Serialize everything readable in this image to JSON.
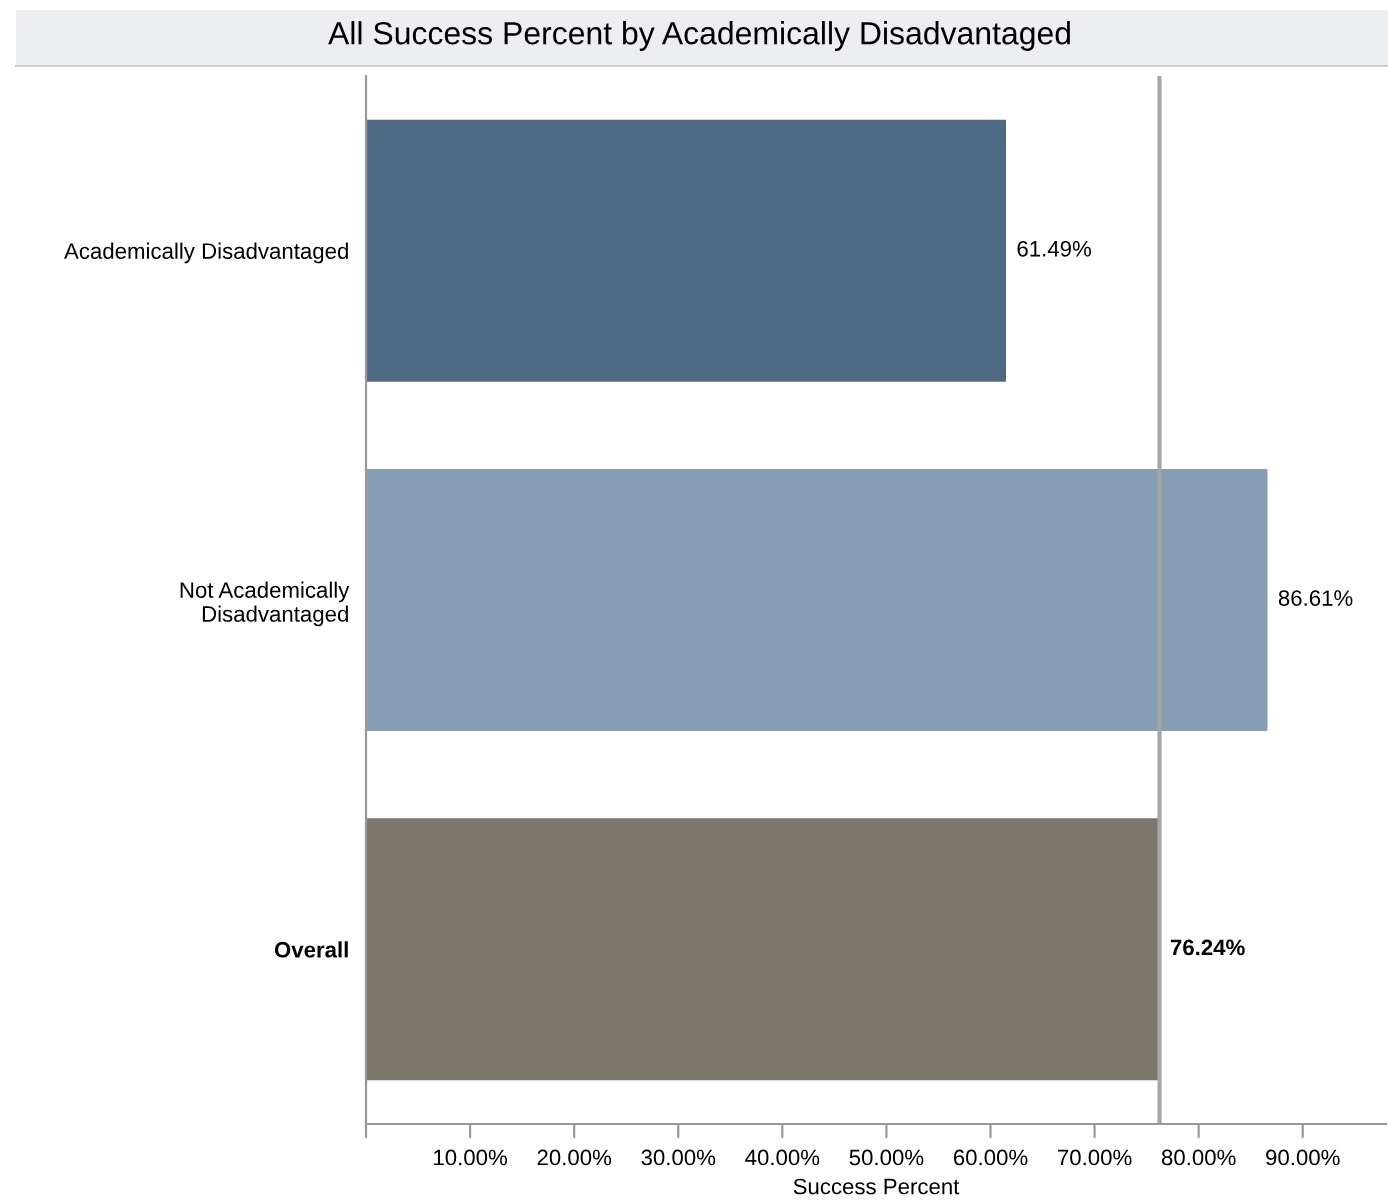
{
  "chart_data": {
    "type": "bar",
    "orientation": "horizontal",
    "title": "All Success Percent by Academically Disadvantaged",
    "xlabel": "Success Percent",
    "categories": [
      "Academically Disadvantaged",
      "Not Academically\nDisadvantaged",
      "Overall"
    ],
    "values": [
      61.49,
      86.61,
      76.24
    ],
    "colors": [
      "#506a84",
      "#879db3",
      "#7e756b"
    ],
    "value_labels": [
      "61.49%",
      "86.61%",
      "76.24%"
    ],
    "xlim": [
      0,
      98
    ],
    "xticks": [
      {
        "value": 0,
        "label": null
      },
      {
        "value": 10,
        "label": "10.00%"
      },
      {
        "value": 20,
        "label": "20.00%"
      },
      {
        "value": 30,
        "label": "30.00%"
      },
      {
        "value": 40,
        "label": "40.00%"
      },
      {
        "value": 50,
        "label": "50.00%"
      },
      {
        "value": 60,
        "label": "60.00%"
      },
      {
        "value": 70,
        "label": "70.00%"
      },
      {
        "value": 80,
        "label": "80.00%"
      },
      {
        "value": 90,
        "label": "90.00%"
      }
    ],
    "ref_lines": [
      {
        "axis": "x",
        "value": 76.24,
        "label": null,
        "color": "#a6a6a6"
      }
    ],
    "grid": false,
    "legend": false
  }
}
